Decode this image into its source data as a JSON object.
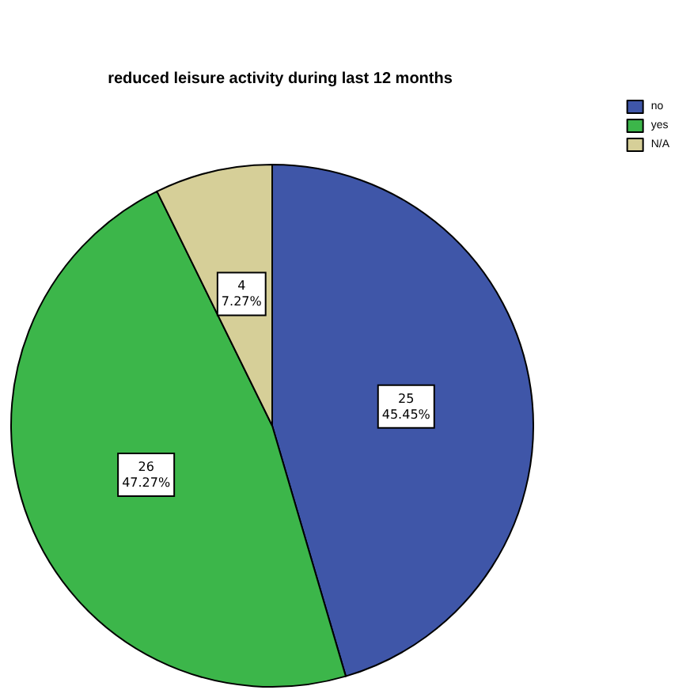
{
  "chart_data": {
    "type": "pie",
    "title": "reduced leisure activity during last 12 months",
    "categories": [
      "no",
      "yes",
      "N/A"
    ],
    "values": [
      25,
      26,
      4
    ],
    "colors": [
      "#3f56a8",
      "#3cb64a",
      "#d6cf98"
    ],
    "value_labels": [
      "25\n45.45%",
      "26\n47.27%",
      "4\n7.27%"
    ],
    "legend": "top right"
  }
}
